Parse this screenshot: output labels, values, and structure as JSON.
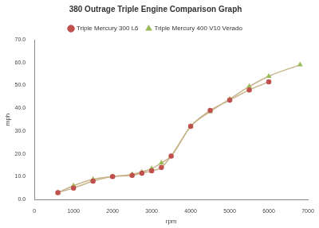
{
  "chart_data": {
    "type": "line",
    "title": "380 Outrage Triple Engine Comparison Graph",
    "x_label": "rpm",
    "y_label": "mph",
    "series": [
      {
        "name": "Triple Mercury 300 L6",
        "color": "#c0504d",
        "marker": "circle",
        "line_style": "solid",
        "x": [
          600,
          1000,
          1500,
          2000,
          2500,
          2750,
          3000,
          3250,
          3500,
          4000,
          4500,
          5000,
          5500,
          6000
        ],
        "values": [
          3,
          5,
          8,
          10,
          10.5,
          11.5,
          12.5,
          14,
          19,
          32,
          39,
          43.5,
          48,
          51.5
        ]
      },
      {
        "name": "Triple Mercury 400 V10 Verado",
        "color": "#9bbb59",
        "marker": "triangle",
        "line_style": "solid",
        "x": [
          600,
          1000,
          1500,
          2000,
          2500,
          2750,
          3000,
          3250,
          3500,
          4000,
          4500,
          5000,
          5500,
          6000,
          6800
        ],
        "values": [
          3,
          6,
          8.8,
          10,
          11,
          12,
          13.5,
          16,
          19,
          32,
          38.5,
          44,
          49.5,
          54,
          59
        ]
      }
    ],
    "xlim": [
      0,
      7000
    ],
    "xticks": [
      0,
      1000,
      2000,
      3000,
      4000,
      5000,
      6000,
      7000
    ],
    "ylim": [
      0,
      70
    ],
    "yticks": [
      {
        "value": 0,
        "label": "0.0"
      },
      {
        "value": 10,
        "label": "10.0"
      },
      {
        "value": 20,
        "label": "20.0"
      },
      {
        "value": 30,
        "label": "30.0"
      },
      {
        "value": 40,
        "label": "40.0"
      },
      {
        "value": 50,
        "label": "50.0"
      },
      {
        "value": 60,
        "label": "60.0"
      },
      {
        "value": 70,
        "label": "70.0"
      }
    ],
    "grid": false,
    "legend": "top"
  }
}
